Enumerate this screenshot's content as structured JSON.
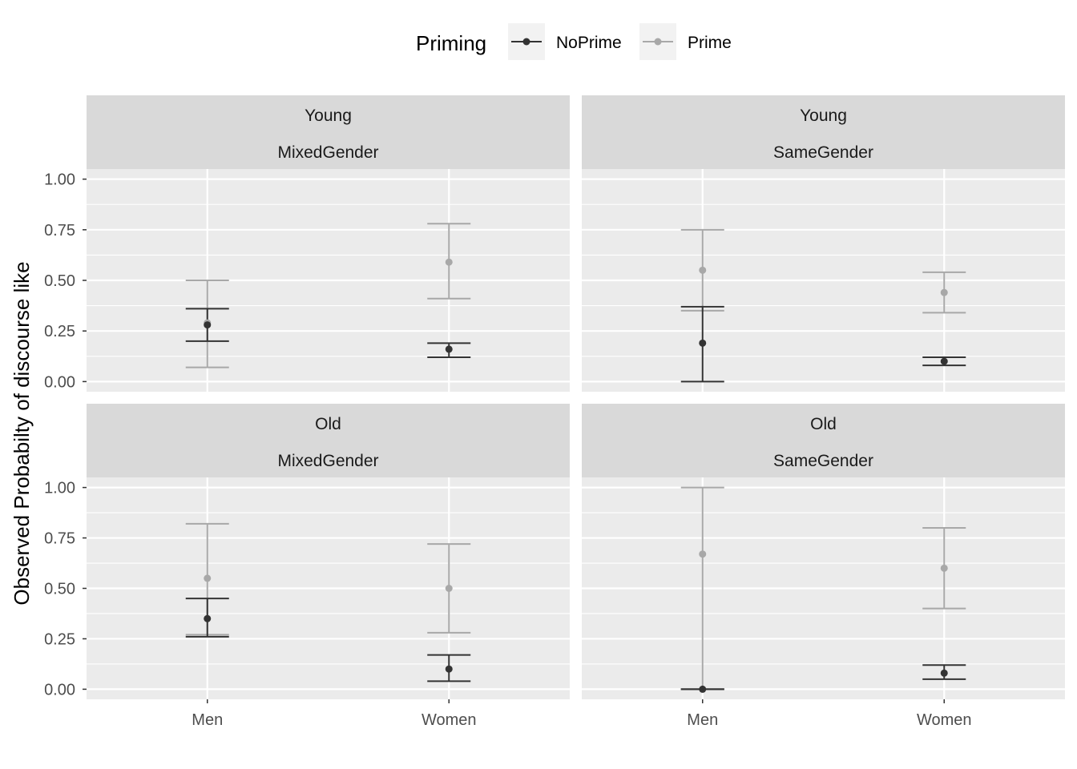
{
  "chart_data": {
    "type": "errorbar",
    "ylabel": "Observed Probabilty of discourse like",
    "xlabel": "",
    "categories": [
      "Men",
      "Women"
    ],
    "ylim": [
      -0.05,
      1.05
    ],
    "yticks": [
      0,
      0.25,
      0.5,
      0.75,
      1
    ],
    "ytick_labels": [
      "0.00",
      "0.25",
      "0.50",
      "0.75",
      "1.00"
    ],
    "legend": {
      "title": "Priming",
      "position": "top",
      "items": [
        {
          "name": "NoPrime",
          "color": "#333333"
        },
        {
          "name": "Prime",
          "color": "#a8a8a8"
        }
      ]
    },
    "panels": [
      {
        "row_strip": "Young",
        "col_strip": "MixedGender",
        "series": [
          {
            "name": "NoPrime",
            "points": [
              {
                "x": "Men",
                "y": 0.28,
                "ymin": 0.2,
                "ymax": 0.36
              },
              {
                "x": "Women",
                "y": 0.16,
                "ymin": 0.12,
                "ymax": 0.19
              }
            ]
          },
          {
            "name": "Prime",
            "points": [
              {
                "x": "Men",
                "y": 0.29,
                "ymin": 0.07,
                "ymax": 0.5
              },
              {
                "x": "Women",
                "y": 0.59,
                "ymin": 0.41,
                "ymax": 0.78
              }
            ]
          }
        ]
      },
      {
        "row_strip": "Young",
        "col_strip": "SameGender",
        "series": [
          {
            "name": "NoPrime",
            "points": [
              {
                "x": "Men",
                "y": 0.19,
                "ymin": 0.0,
                "ymax": 0.37
              },
              {
                "x": "Women",
                "y": 0.1,
                "ymin": 0.08,
                "ymax": 0.12
              }
            ]
          },
          {
            "name": "Prime",
            "points": [
              {
                "x": "Men",
                "y": 0.55,
                "ymin": 0.35,
                "ymax": 0.75
              },
              {
                "x": "Women",
                "y": 0.44,
                "ymin": 0.34,
                "ymax": 0.54
              }
            ]
          }
        ]
      },
      {
        "row_strip": "Old",
        "col_strip": "MixedGender",
        "series": [
          {
            "name": "NoPrime",
            "points": [
              {
                "x": "Men",
                "y": 0.35,
                "ymin": 0.26,
                "ymax": 0.45
              },
              {
                "x": "Women",
                "y": 0.1,
                "ymin": 0.04,
                "ymax": 0.17
              }
            ]
          },
          {
            "name": "Prime",
            "points": [
              {
                "x": "Men",
                "y": 0.55,
                "ymin": 0.27,
                "ymax": 0.82
              },
              {
                "x": "Women",
                "y": 0.5,
                "ymin": 0.28,
                "ymax": 0.72
              }
            ]
          }
        ]
      },
      {
        "row_strip": "Old",
        "col_strip": "SameGender",
        "series": [
          {
            "name": "NoPrime",
            "points": [
              {
                "x": "Men",
                "y": 0.0,
                "ymin": 0.0,
                "ymax": 0.0
              },
              {
                "x": "Women",
                "y": 0.08,
                "ymin": 0.05,
                "ymax": 0.12
              }
            ]
          },
          {
            "name": "Prime",
            "points": [
              {
                "x": "Men",
                "y": 0.67,
                "ymin": 0.0,
                "ymax": 1.0
              },
              {
                "x": "Women",
                "y": 0.6,
                "ymin": 0.4,
                "ymax": 0.8
              }
            ]
          }
        ]
      }
    ]
  },
  "colors": {
    "panel_bg": "#ebebeb",
    "strip_bg": "#d9d9d9",
    "grid": "#ffffff"
  }
}
